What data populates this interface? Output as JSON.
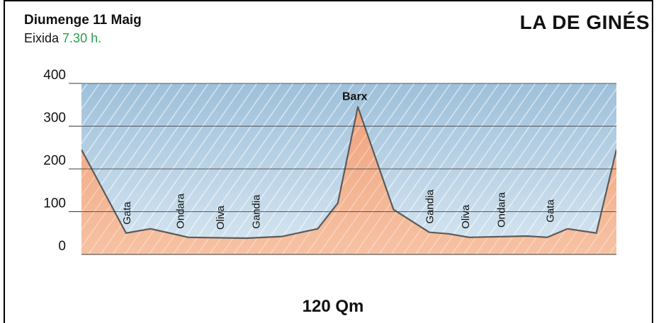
{
  "header": {
    "date": "Diumenge 11 Maig",
    "departure_label": "Eixida",
    "departure_time": "7.30 h.",
    "route_name": "LA DE GINÉS",
    "distance": "120 Qm"
  },
  "colors": {
    "sky": "#a9c6dd",
    "terrain": "#f1a985",
    "terrain_line": "#5b5b5b",
    "departure_time": "#27a046"
  },
  "chart_data": {
    "type": "area",
    "title": "",
    "xlabel": "",
    "ylabel": "",
    "ylim": [
      0,
      400
    ],
    "y_ticks": [
      0,
      100,
      200,
      300,
      400
    ],
    "grid": true,
    "x": [
      0,
      10,
      15.5,
      24,
      37,
      45,
      53,
      57.5,
      62,
      70,
      78,
      82.5,
      87,
      100,
      104.5,
      109,
      115.5,
      120
    ],
    "values": [
      245,
      50,
      60,
      40,
      38,
      42,
      60,
      120,
      345,
      105,
      52,
      48,
      40,
      43,
      40,
      60,
      50,
      245
    ],
    "places": [
      {
        "name": "Gata",
        "x": 10,
        "y": 50
      },
      {
        "name": "Ondara",
        "x": 22,
        "y": 40
      },
      {
        "name": "Oliva",
        "x": 31,
        "y": 38
      },
      {
        "name": "Gandia",
        "x": 39,
        "y": 40
      },
      {
        "name": "Barx",
        "x": 61,
        "y": 345
      },
      {
        "name": "Gandia",
        "x": 78,
        "y": 52
      },
      {
        "name": "Oliva",
        "x": 86,
        "y": 40
      },
      {
        "name": "Ondara",
        "x": 94,
        "y": 43
      },
      {
        "name": "Gata",
        "x": 105,
        "y": 55
      }
    ]
  }
}
